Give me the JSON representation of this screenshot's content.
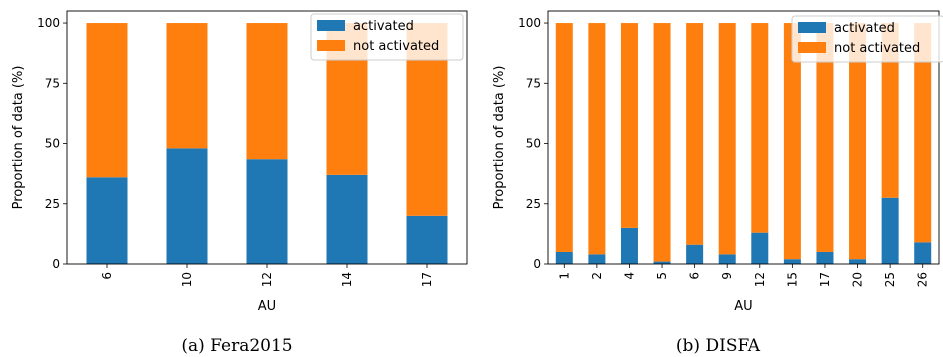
{
  "chart_data": [
    {
      "type": "bar",
      "stacked": true,
      "caption": "(a) Fera2015",
      "xlabel": "AU",
      "ylabel": "Proportion of data (%)",
      "ylim": [
        0,
        105
      ],
      "yticks": [
        "0",
        "25",
        "50",
        "75",
        "100"
      ],
      "categories": [
        "6",
        "10",
        "12",
        "14",
        "17"
      ],
      "series": [
        {
          "name": "activated",
          "color": "#1f77b4",
          "values": [
            36,
            48,
            43.5,
            37,
            20
          ]
        },
        {
          "name": "not activated",
          "color": "#ff7f0e",
          "values": [
            64,
            52,
            56.5,
            63,
            80
          ]
        }
      ],
      "legend": "top-right",
      "grid": false
    },
    {
      "type": "bar",
      "stacked": true,
      "caption": "(b) DISFA",
      "xlabel": "AU",
      "ylabel": "Proportion of data (%)",
      "ylim": [
        0,
        105
      ],
      "yticks": [
        "0",
        "25",
        "50",
        "75",
        "100"
      ],
      "categories": [
        "1",
        "2",
        "4",
        "5",
        "6",
        "9",
        "12",
        "15",
        "17",
        "20",
        "25",
        "26"
      ],
      "series": [
        {
          "name": "activated",
          "color": "#1f77b4",
          "values": [
            5,
            4,
            15,
            1,
            8,
            4,
            13,
            2,
            5,
            2,
            27.5,
            9
          ]
        },
        {
          "name": "not activated",
          "color": "#ff7f0e",
          "values": [
            95,
            96,
            85,
            99,
            92,
            96,
            87,
            98,
            95,
            98,
            72.5,
            91
          ]
        }
      ],
      "legend": "top-right",
      "grid": false
    }
  ]
}
